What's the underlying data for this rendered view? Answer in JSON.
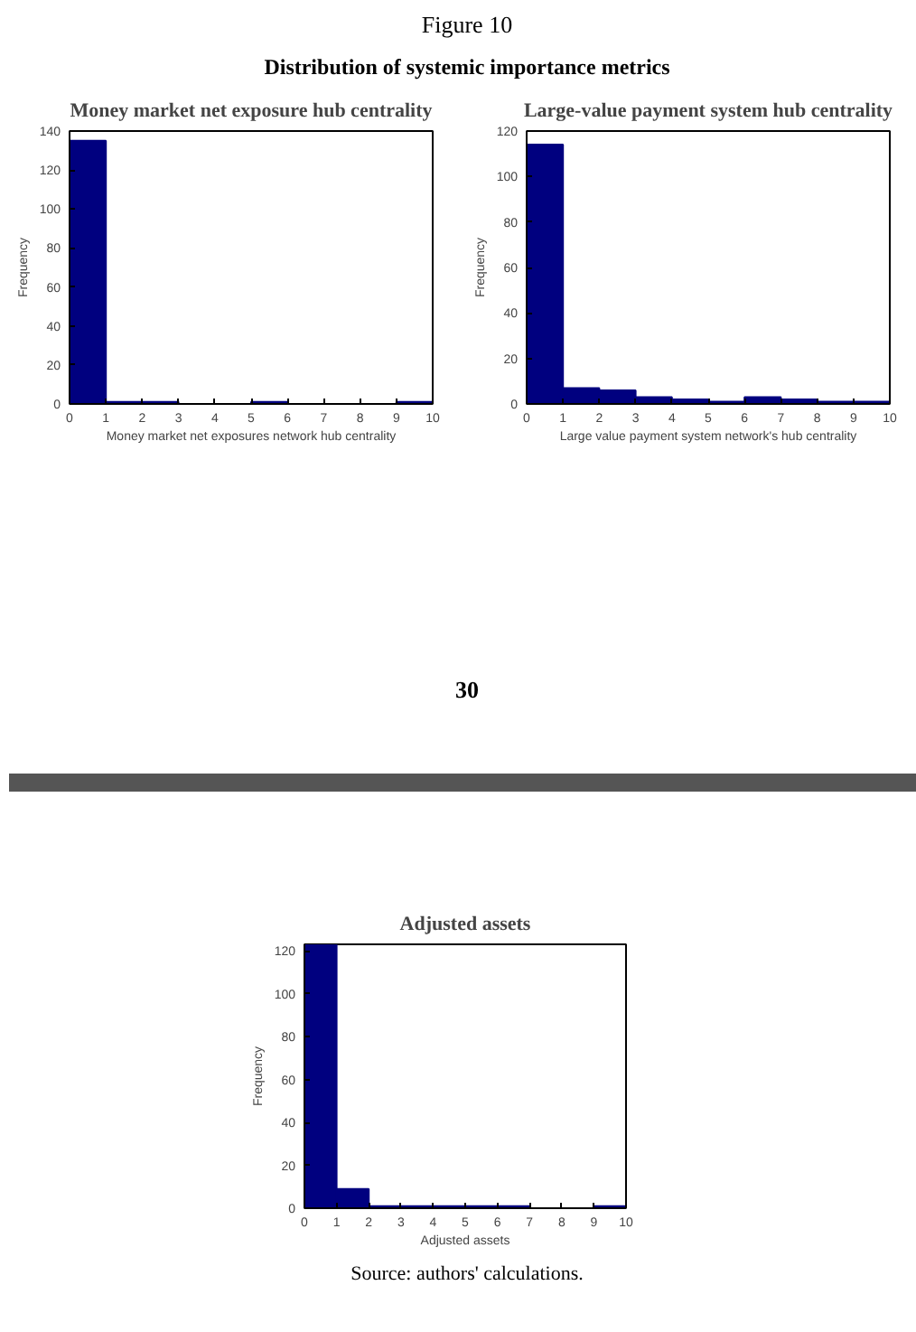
{
  "chart_data": [
    {
      "type": "histogram",
      "title": "Money market net exposure hub centrality",
      "annotations": [
        "Figure 10",
        "Distribution of systemic importance metrics",
        "30"
      ],
      "xlabel": "Money market net exposures network hub centrality",
      "ylabel": "Frequency",
      "bins": [
        0,
        1,
        2,
        3,
        4,
        5,
        6,
        7,
        8,
        9,
        10
      ],
      "values": [
        135,
        1,
        1,
        0,
        0,
        1,
        0,
        0,
        0,
        1
      ],
      "color": "#00007f",
      "xlim": [
        0,
        10
      ],
      "xticks": [
        0,
        1,
        2,
        3,
        4,
        5,
        6,
        7,
        8,
        9,
        10
      ],
      "ylim": [
        0,
        140
      ],
      "yticks": [
        0,
        20,
        40,
        60,
        80,
        100,
        120,
        140
      ]
    },
    {
      "type": "histogram",
      "title": "Large-value payment system hub centrality",
      "xlabel": "Large value payment system network's hub centrality",
      "ylabel": "Frequency",
      "bins": [
        0,
        1,
        2,
        3,
        4,
        5,
        6,
        7,
        8,
        9,
        10
      ],
      "values": [
        114,
        7,
        6,
        3,
        2,
        1,
        3,
        2,
        1,
        1
      ],
      "color": "#00007f",
      "xlim": [
        0,
        10
      ],
      "xticks": [
        0,
        1,
        2,
        3,
        4,
        5,
        6,
        7,
        8,
        9,
        10
      ],
      "ylim": [
        0,
        120
      ],
      "yticks": [
        0,
        20,
        40,
        60,
        80,
        100,
        120
      ]
    },
    {
      "type": "histogram",
      "title": "Adjusted assets",
      "annotations": [
        "Source: authors' calculations."
      ],
      "xlabel": "Adjusted assets",
      "ylabel": "Frequency",
      "bins": [
        0,
        1,
        2,
        3,
        4,
        5,
        6,
        7,
        8,
        9,
        10
      ],
      "values": [
        123,
        9,
        1,
        1,
        1,
        1,
        1,
        0,
        0,
        1
      ],
      "color": "#00007f",
      "xlim": [
        0,
        10
      ],
      "xticks": [
        0,
        1,
        2,
        3,
        4,
        5,
        6,
        7,
        8,
        9,
        10
      ],
      "ylim": [
        0,
        123
      ],
      "yticks": [
        0,
        20,
        40,
        60,
        80,
        100,
        120
      ]
    }
  ]
}
